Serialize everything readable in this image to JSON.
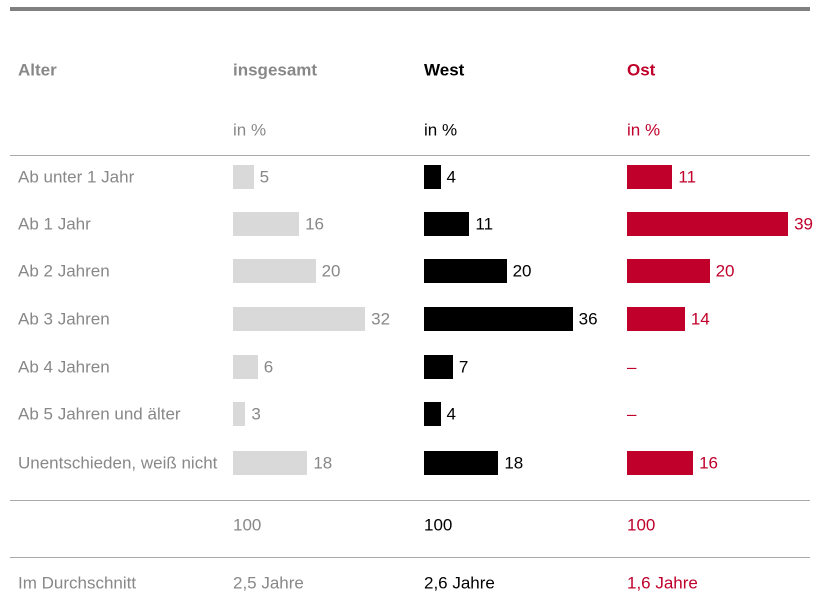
{
  "header": {
    "label": "Alter",
    "columns": [
      "insgesamt",
      "West",
      "Ost"
    ],
    "units": [
      "in %",
      "in %",
      "in %"
    ]
  },
  "rows": [
    {
      "label": "Ab unter 1 Jahr",
      "values": [
        5,
        4,
        11
      ]
    },
    {
      "label": "Ab 1 Jahr",
      "values": [
        16,
        11,
        39
      ]
    },
    {
      "label": "Ab 2 Jahren",
      "values": [
        20,
        20,
        20
      ]
    },
    {
      "label": "Ab 3 Jahren",
      "values": [
        32,
        36,
        14
      ]
    },
    {
      "label": "Ab 4 Jahren",
      "values": [
        6,
        7,
        "–"
      ]
    },
    {
      "label": "Ab 5 Jahren und älter",
      "values": [
        3,
        4,
        "–"
      ]
    },
    {
      "label": "Unentschieden, weiß nicht",
      "values": [
        18,
        18,
        16
      ]
    }
  ],
  "total": {
    "values": [
      100,
      100,
      100
    ]
  },
  "average": {
    "label": "Im Durchschnitt",
    "values": [
      "2,5 Jahre",
      "2,6 Jahre",
      "1,6 Jahre"
    ]
  }
}
